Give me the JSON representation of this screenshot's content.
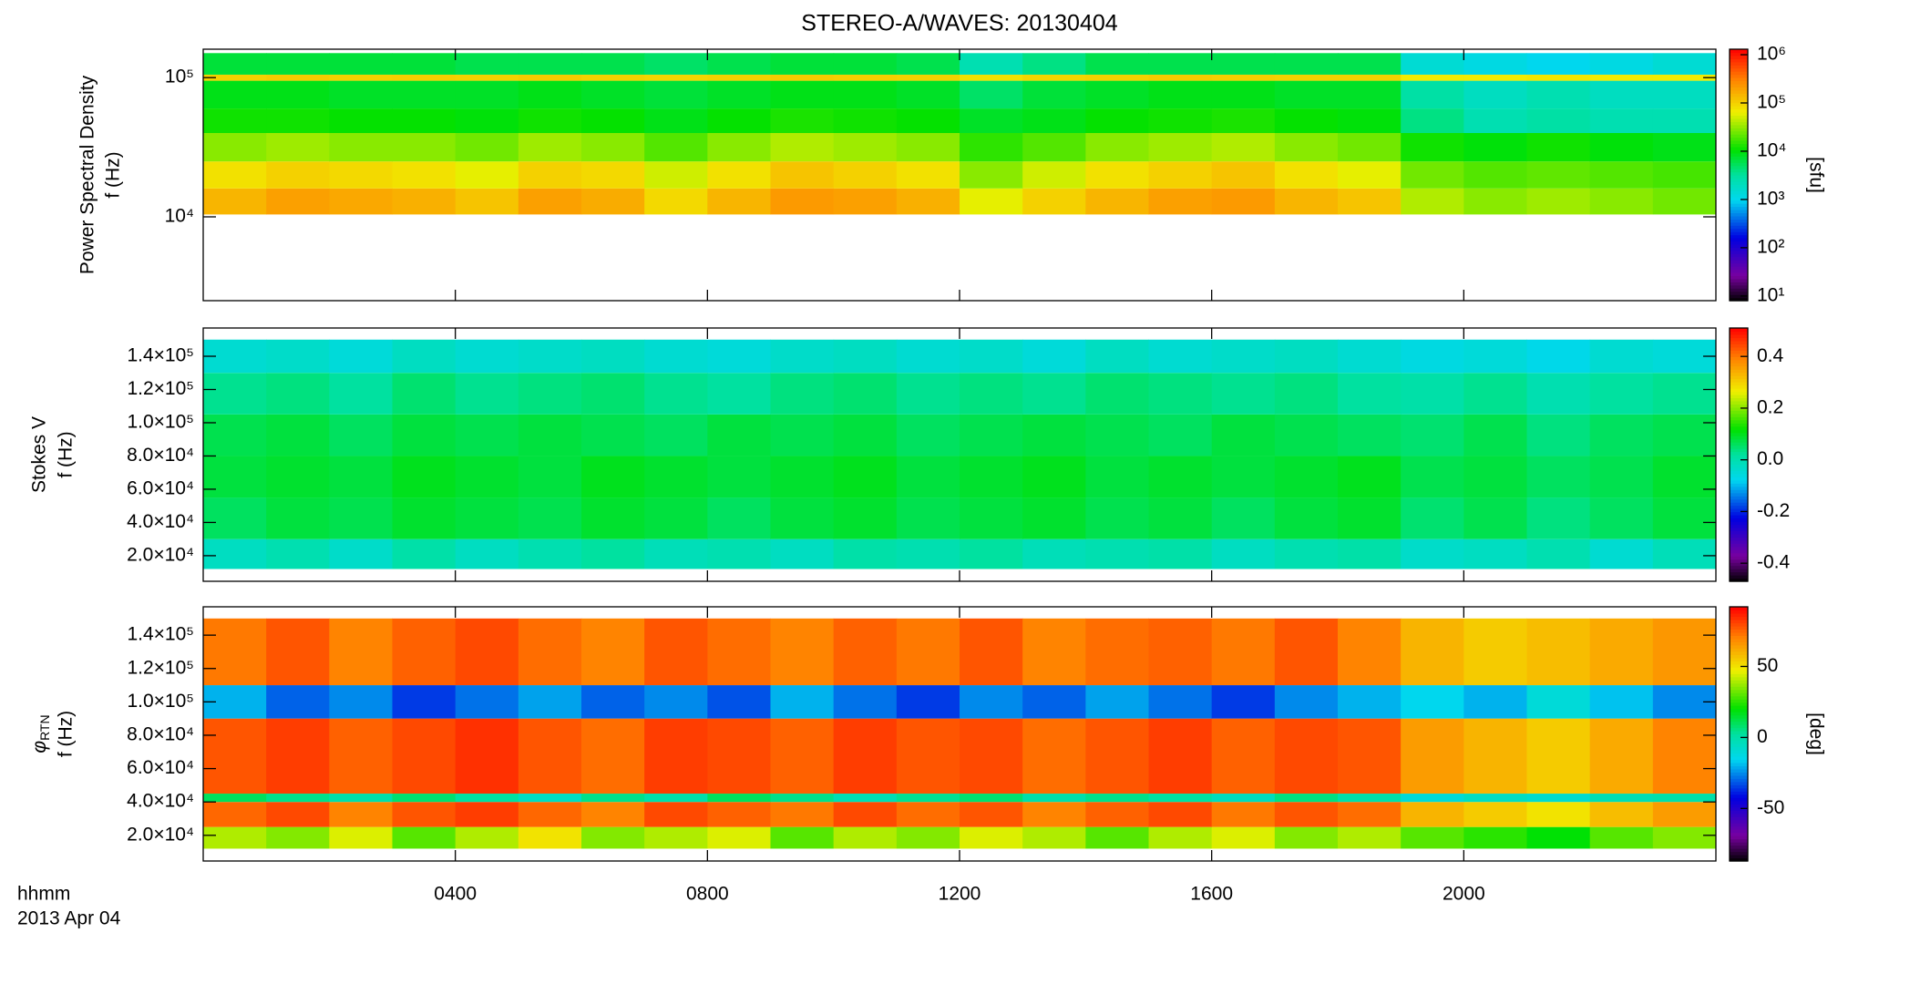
{
  "title": "STEREO-A/WAVES: 20130404",
  "x_axis": {
    "xlim": [
      0,
      24
    ],
    "xticks": [
      {
        "value": 4,
        "label": "0400"
      },
      {
        "value": 8,
        "label": "0800"
      },
      {
        "value": 12,
        "label": "1200"
      },
      {
        "value": 16,
        "label": "1600"
      },
      {
        "value": 20,
        "label": "2000"
      }
    ],
    "label": "hhmm",
    "sublabel": "2013 Apr 04"
  },
  "chart_data": [
    {
      "type": "heatmap",
      "ylabel": "Power Spectral Density",
      "ylabel2": "f (Hz)",
      "ylog": true,
      "ylim": [
        2500,
        160000
      ],
      "yticks": [
        {
          "value": 10000,
          "label": "10⁴"
        },
        {
          "value": 100000,
          "label": "10⁵"
        }
      ],
      "colormap": "rainbow",
      "zlog": true,
      "zlim": [
        8,
        1300000
      ],
      "zticks": [
        {
          "value": 10,
          "label": "10¹"
        },
        {
          "value": 100,
          "label": "10²"
        },
        {
          "value": 1000,
          "label": "10³"
        },
        {
          "value": 10000,
          "label": "10⁴"
        },
        {
          "value": 100000,
          "label": "10⁵"
        },
        {
          "value": 1000000,
          "label": "10⁶"
        }
      ],
      "zlabel": "[sfu]",
      "y_bins": [
        10400,
        16000,
        25000,
        40000,
        60000,
        95000,
        105000,
        150000
      ],
      "z": [
        [
          150000,
          200000,
          180000,
          160000,
          120000,
          200000,
          170000,
          90000,
          150000,
          220000,
          200000,
          160000,
          60000,
          100000,
          150000,
          200000,
          220000,
          150000,
          120000,
          40000,
          30000,
          35000,
          30000,
          25000
        ],
        [
          80000,
          100000,
          90000,
          80000,
          60000,
          100000,
          90000,
          50000,
          80000,
          120000,
          100000,
          80000,
          30000,
          50000,
          80000,
          100000,
          120000,
          80000,
          60000,
          25000,
          20000,
          22000,
          20000,
          18000
        ],
        [
          30000,
          35000,
          30000,
          30000,
          25000,
          35000,
          30000,
          20000,
          30000,
          40000,
          35000,
          30000,
          15000,
          20000,
          30000,
          35000,
          40000,
          30000,
          25000,
          12000,
          10000,
          12000,
          10000,
          9000
        ],
        [
          12000,
          12000,
          11000,
          11000,
          10000,
          12000,
          11000,
          9000,
          11000,
          13000,
          12000,
          11000,
          8000,
          9000,
          11000,
          12000,
          13000,
          11000,
          10000,
          4000,
          2500,
          3000,
          2500,
          2500
        ],
        [
          9000,
          9000,
          8000,
          8000,
          8000,
          9000,
          8000,
          7000,
          8000,
          9000,
          9000,
          8000,
          5000,
          7000,
          8000,
          9000,
          9000,
          8000,
          8000,
          3000,
          2000,
          2500,
          2000,
          2000
        ],
        [
          100000,
          110000,
          100000,
          105000,
          100000,
          110000,
          100000,
          95000,
          100000,
          110000,
          105000,
          100000,
          80000,
          95000,
          100000,
          110000,
          105000,
          100000,
          100000,
          70000,
          70000,
          75000,
          70000,
          70000
        ],
        [
          7000,
          7000,
          7000,
          7000,
          6000,
          6000,
          6000,
          5000,
          6000,
          7000,
          7000,
          6000,
          2500,
          4000,
          6000,
          6000,
          6000,
          6000,
          6000,
          1500,
          1200,
          1000,
          1200,
          1500
        ]
      ]
    },
    {
      "type": "heatmap",
      "ylabel": "Stokes V",
      "ylabel2": "f (Hz)",
      "ylog": false,
      "ylim": [
        4600,
        157000
      ],
      "yticks": [
        {
          "value": 20000,
          "label": "2.0×10⁴"
        },
        {
          "value": 40000,
          "label": "4.0×10⁴"
        },
        {
          "value": 60000,
          "label": "6.0×10⁴"
        },
        {
          "value": 80000,
          "label": "8.0×10⁴"
        },
        {
          "value": 100000,
          "label": "1.0×10⁵"
        },
        {
          "value": 120000,
          "label": "1.2×10⁵"
        },
        {
          "value": 140000,
          "label": "1.4×10⁵"
        }
      ],
      "colormap": "rainbow",
      "zlog": false,
      "zlim": [
        -0.47,
        0.51
      ],
      "zticks": [
        -0.4,
        -0.2,
        {
          "value": 0,
          "label": "0.0"
        },
        0.2,
        0.4
      ],
      "y_bins": [
        12000,
        30000,
        55000,
        80000,
        105000,
        130000,
        150000
      ],
      "z": [
        [
          -0.02,
          0.0,
          -0.03,
          0.01,
          -0.02,
          0.0,
          0.02,
          -0.01,
          0.0,
          -0.02,
          0.01,
          0.0,
          0.02,
          -0.01,
          0.0,
          0.01,
          -0.02,
          0.0,
          0.01,
          -0.03,
          -0.02,
          0.0,
          -0.04,
          -0.01
        ],
        [
          0.06,
          0.08,
          0.07,
          0.09,
          0.08,
          0.07,
          0.09,
          0.08,
          0.06,
          0.08,
          0.09,
          0.07,
          0.08,
          0.09,
          0.07,
          0.08,
          0.06,
          0.08,
          0.09,
          0.05,
          0.07,
          0.04,
          0.06,
          0.08
        ],
        [
          0.08,
          0.09,
          0.08,
          0.1,
          0.09,
          0.08,
          0.1,
          0.09,
          0.08,
          0.09,
          0.1,
          0.08,
          0.09,
          0.1,
          0.08,
          0.09,
          0.08,
          0.09,
          0.1,
          0.07,
          0.08,
          0.06,
          0.07,
          0.09
        ],
        [
          0.07,
          0.08,
          0.06,
          0.08,
          0.07,
          0.08,
          0.07,
          0.06,
          0.08,
          0.07,
          0.08,
          0.06,
          0.07,
          0.08,
          0.07,
          0.06,
          0.08,
          0.07,
          0.06,
          0.05,
          0.07,
          0.04,
          0.06,
          0.07
        ],
        [
          0.03,
          0.04,
          0.02,
          0.05,
          0.03,
          0.04,
          0.05,
          0.03,
          0.02,
          0.04,
          0.05,
          0.03,
          0.04,
          0.03,
          0.05,
          0.04,
          0.03,
          0.04,
          0.02,
          0.01,
          0.03,
          0.0,
          0.02,
          0.03
        ],
        [
          -0.04,
          -0.03,
          -0.05,
          -0.02,
          -0.04,
          -0.03,
          -0.02,
          -0.04,
          -0.05,
          -0.03,
          -0.02,
          -0.04,
          -0.03,
          -0.05,
          -0.02,
          -0.04,
          -0.03,
          -0.02,
          -0.04,
          -0.06,
          -0.05,
          -0.07,
          -0.04,
          -0.05
        ]
      ]
    },
    {
      "type": "heatmap",
      "ylabel_symbol": "φ",
      "ylabel_subscript": "RTN",
      "ylabel2": "f (Hz)",
      "ylog": false,
      "ylim": [
        4600,
        157000
      ],
      "yticks": [
        {
          "value": 20000,
          "label": "2.0×10⁴"
        },
        {
          "value": 40000,
          "label": "4.0×10⁴"
        },
        {
          "value": 60000,
          "label": "6.0×10⁴"
        },
        {
          "value": 80000,
          "label": "8.0×10⁴"
        },
        {
          "value": 100000,
          "label": "1.0×10⁵"
        },
        {
          "value": 120000,
          "label": "1.2×10⁵"
        },
        {
          "value": 140000,
          "label": "1.4×10⁵"
        }
      ],
      "colormap": "rainbow",
      "zlog": false,
      "zlim": [
        -87,
        92
      ],
      "zticks": [
        -50,
        0,
        50
      ],
      "zlabel": "[deg]",
      "y_bins": [
        12000,
        25000,
        40000,
        45000,
        90000,
        110000,
        150000
      ],
      "z": [
        [
          40,
          35,
          45,
          30,
          40,
          50,
          35,
          40,
          45,
          30,
          40,
          35,
          45,
          40,
          30,
          40,
          45,
          35,
          40,
          30,
          25,
          20,
          30,
          35
        ],
        [
          75,
          80,
          70,
          78,
          82,
          75,
          70,
          80,
          76,
          72,
          80,
          74,
          78,
          70,
          76,
          80,
          72,
          78,
          74,
          60,
          55,
          50,
          58,
          65
        ],
        [
          10,
          5,
          0,
          8,
          2,
          -5,
          5,
          0,
          10,
          5,
          -2,
          4,
          8,
          0,
          5,
          2,
          -4,
          6,
          0,
          -10,
          -5,
          -8,
          -2,
          0
        ],
        [
          78,
          82,
          76,
          80,
          84,
          78,
          74,
          82,
          80,
          76,
          82,
          78,
          80,
          74,
          78,
          82,
          76,
          80,
          78,
          65,
          60,
          55,
          62,
          70
        ],
        [
          -20,
          -30,
          -25,
          -35,
          -28,
          -22,
          -30,
          -25,
          -32,
          -20,
          -28,
          -35,
          -25,
          -30,
          -22,
          -28,
          -35,
          -25,
          -20,
          -15,
          -20,
          -10,
          -18,
          -25
        ],
        [
          72,
          78,
          70,
          76,
          80,
          74,
          70,
          78,
          74,
          70,
          76,
          72,
          78,
          70,
          74,
          76,
          72,
          78,
          70,
          60,
          55,
          58,
          62,
          66
        ]
      ]
    }
  ]
}
